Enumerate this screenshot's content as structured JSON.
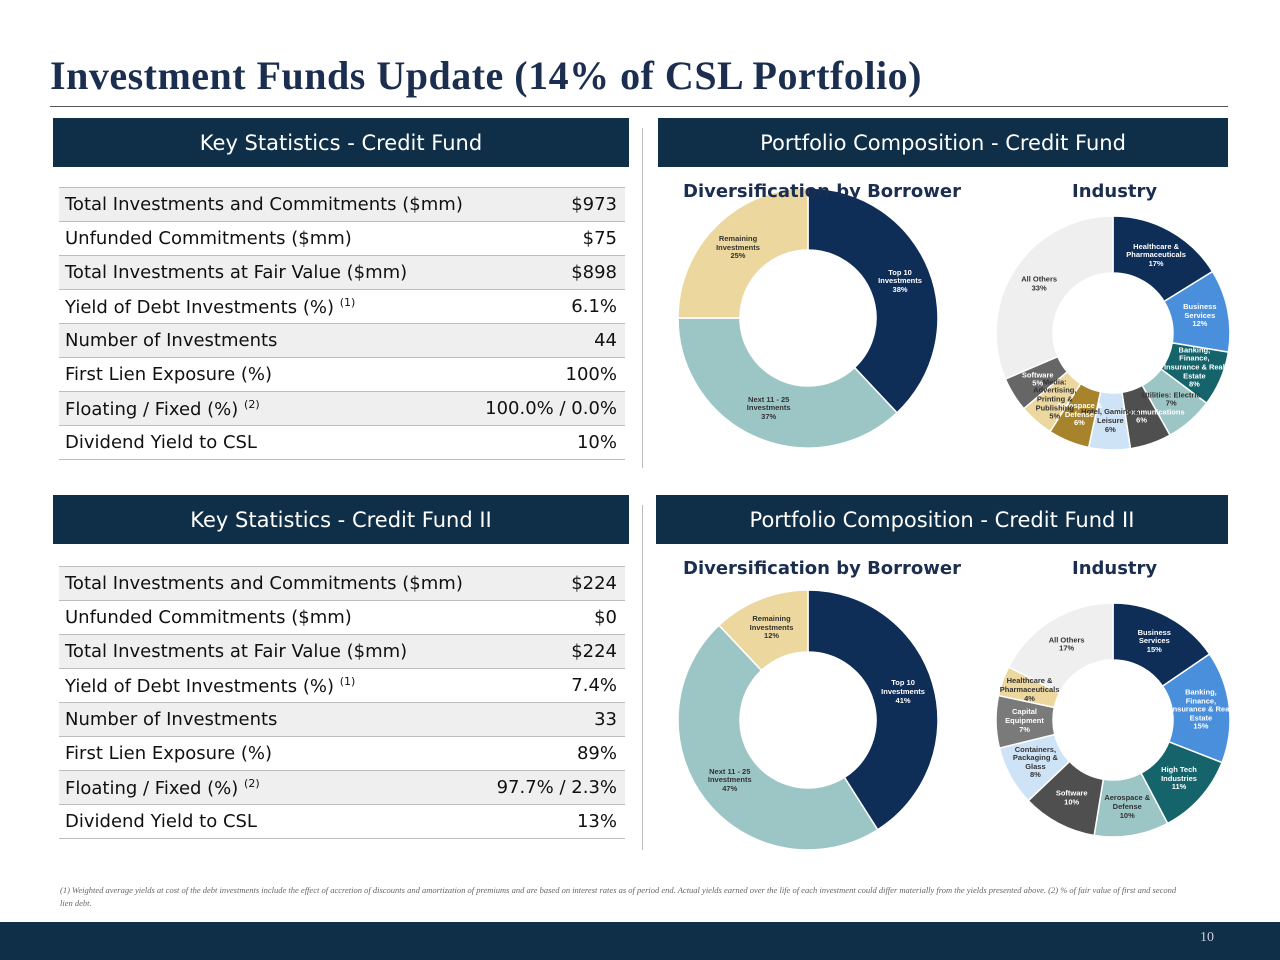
{
  "title": "Investment Funds Update (14% of CSL Portfolio)",
  "sections": [
    {
      "stats_header": "Key Statistics - Credit Fund",
      "composition_header": "Portfolio Composition - Credit Fund",
      "stats": [
        {
          "label": "Total Investments and Commitments ($mm)",
          "value": "$973"
        },
        {
          "label": "Unfunded Commitments ($mm)",
          "value": "$75"
        },
        {
          "label": "Total Investments at Fair Value ($mm)",
          "value": "$898"
        },
        {
          "label": "Yield of Debt Investments (%)",
          "note": "(1)",
          "value": "6.1%"
        },
        {
          "label": "Number of Investments",
          "value": "44"
        },
        {
          "label": "First Lien Exposure (%)",
          "value": "100%"
        },
        {
          "label": "Floating / Fixed (%)",
          "note": "(2)",
          "value": "100.0% / 0.0%"
        },
        {
          "label": "Dividend Yield to CSL",
          "value": "10%"
        }
      ]
    },
    {
      "stats_header": "Key Statistics - Credit Fund II",
      "composition_header": "Portfolio Composition - Credit Fund II",
      "stats": [
        {
          "label": "Total Investments and Commitments ($mm)",
          "value": "$224"
        },
        {
          "label": "Unfunded Commitments ($mm)",
          "value": "$0"
        },
        {
          "label": "Total Investments at Fair Value ($mm)",
          "value": "$224"
        },
        {
          "label": "Yield of Debt Investments (%)",
          "note": "(1)",
          "value": "7.4%"
        },
        {
          "label": "Number of Investments",
          "value": "33"
        },
        {
          "label": "First Lien Exposure (%)",
          "value": "89%"
        },
        {
          "label": "Floating / Fixed (%)",
          "note": "(2)",
          "value": "97.7% / 2.3%"
        },
        {
          "label": "Dividend Yield to CSL",
          "value": "13%"
        }
      ]
    }
  ],
  "chart_data": [
    {
      "type": "donut",
      "title": "Diversification by Borrower",
      "categories": [
        "Top 10 Investments",
        "Next 11 - 25 Investments",
        "Remaining Investments"
      ],
      "values": [
        38,
        37,
        25
      ],
      "value_labels": [
        "38%",
        "37%",
        "25%"
      ],
      "colors": [
        "#0e2d57",
        "#9cc5c6",
        "#ecd79e"
      ]
    },
    {
      "type": "donut",
      "title": "Industry",
      "categories": [
        "Healthcare & Pharmaceuticals",
        "Business Services",
        "Banking, Finance, Insurance & Real Estate",
        "Utilities: Electric",
        "Telecommunications",
        "Hotel, Gaming & Leisure",
        "Aerospace & Defense",
        "Media: Advertising, Printing & Publishing",
        "Software",
        "All Others"
      ],
      "values": [
        17,
        12,
        8,
        7,
        6,
        6,
        6,
        5,
        5,
        33
      ],
      "value_labels": [
        "17%",
        "12%",
        "8%",
        "7%",
        "6%",
        "6%",
        "6%",
        "5%",
        "5%",
        "33%"
      ],
      "colors": [
        "#0e2d57",
        "#4a8fdc",
        "#16646b",
        "#9cc5c6",
        "#4f4f4f",
        "#cfe3f6",
        "#a7832c",
        "#ecd79e",
        "#666666",
        "#efefef"
      ]
    },
    {
      "type": "donut",
      "title": "Diversification by Borrower",
      "categories": [
        "Top 10 Investments",
        "Next 11 - 25 Investments",
        "Remaining Investments"
      ],
      "values": [
        41,
        47,
        12
      ],
      "value_labels": [
        "41%",
        "47%",
        "12%"
      ],
      "colors": [
        "#0e2d57",
        "#9cc5c6",
        "#ecd79e"
      ]
    },
    {
      "type": "donut",
      "title": "Industry",
      "categories": [
        "Business Services",
        "Banking, Finance, Insurance & Real Estate",
        "High Tech Industries",
        "Aerospace & Defense",
        "Software",
        "Containers, Packaging & Glass",
        "Capital Equipment",
        "Healthcare & Pharmaceuticals",
        "All Others"
      ],
      "values": [
        15,
        15,
        11,
        10,
        10,
        8,
        7,
        4,
        17
      ],
      "value_labels": [
        "15%",
        "15%",
        "11%",
        "10%",
        "10%",
        "8%",
        "7%",
        "4%",
        "17%"
      ],
      "colors": [
        "#0e2d57",
        "#4a8fdc",
        "#16646b",
        "#9cc5c6",
        "#4f4f4f",
        "#cfe3f6",
        "#7a7a7a",
        "#ecd79e",
        "#efefef"
      ]
    }
  ],
  "footnote": "(1) Weighted average yields at cost of the debt investments include the effect of accretion of discounts and amortization of premiums and are based on interest rates as of period end. Actual yields earned over the life of each investment could differ materially from the yields presented above. (2) % of fair value of first and second lien debt.",
  "page_number": "10"
}
